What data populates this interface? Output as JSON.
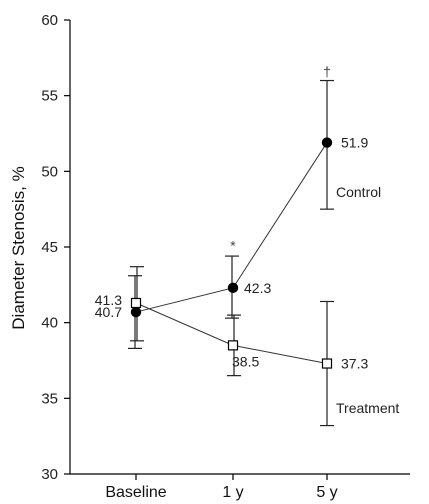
{
  "chart_data": {
    "type": "line",
    "title": "",
    "ylabel": "Diameter Stenosis, %",
    "xlabel": "",
    "categories": [
      "Baseline",
      "1 y",
      "5 y"
    ],
    "ylim": [
      30,
      60
    ],
    "yticks": [
      30,
      35,
      40,
      45,
      50,
      55,
      60
    ],
    "ytick_labels": [
      "30",
      "35",
      "40",
      "45",
      "50",
      "55",
      "60"
    ],
    "grid": false,
    "series": [
      {
        "name": "Control",
        "marker": "filled-circle",
        "color": "#000000",
        "values": [
          40.7,
          42.3,
          51.9
        ],
        "value_labels": [
          "40.7",
          "42.3",
          "51.9"
        ],
        "err_low": [
          38.3,
          40.3,
          47.5
        ],
        "err_high": [
          43.1,
          44.4,
          56.0
        ]
      },
      {
        "name": "Treatment",
        "marker": "open-square",
        "color": "#000000",
        "values": [
          41.3,
          38.5,
          37.3
        ],
        "value_labels": [
          "41.3",
          "38.5",
          "37.3"
        ],
        "err_low": [
          38.8,
          36.5,
          33.2
        ],
        "err_high": [
          43.7,
          40.5,
          41.4
        ]
      }
    ],
    "annotations": [
      {
        "text": "*",
        "category": "1 y",
        "y": 45.1
      },
      {
        "text": "†",
        "category": "5 y",
        "y": 56.6
      }
    ]
  }
}
